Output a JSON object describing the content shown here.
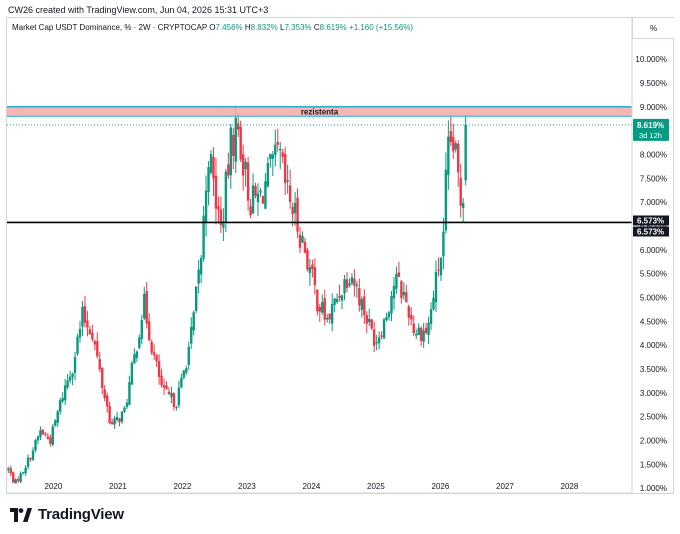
{
  "header": {
    "created_by": "CW26 created with TradingView.com, Jun 04, 2026 15:31 UTC+3"
  },
  "legend": {
    "title": "Market Cap USDT Dominance, % · 2W · CRYPTOCAP",
    "o_label": "O",
    "o_value": "7.456%",
    "h_label": "H",
    "h_value": "8.832%",
    "l_label": "L",
    "l_value": "7.353%",
    "c_label": "C",
    "c_value": "8.619%",
    "change": "+1.160 (+15.56%)"
  },
  "scale_button": "%",
  "brand": "TradingView",
  "colors": {
    "up": "#089981",
    "down": "#f23645",
    "zone_fill": "#f7a8a8",
    "zone_border": "#22b0d3",
    "hline": "#000000"
  },
  "chart_data": {
    "type": "candlestick",
    "title": "Market Cap USDT Dominance, % · 2W · CRYPTOCAP",
    "x_tick_labels": [
      "2020",
      "2021",
      "2022",
      "2023",
      "2024",
      "2025",
      "2026",
      "2027",
      "2028"
    ],
    "y_tick_labels": [
      "1.000%",
      "1.500%",
      "2.000%",
      "2.500%",
      "3.000%",
      "3.500%",
      "4.000%",
      "4.500%",
      "5.000%",
      "5.500%",
      "6.000%",
      "6.500%",
      "7.000%",
      "7.500%",
      "8.000%",
      "8.500%",
      "9.000%",
      "9.500%",
      "10.000%"
    ],
    "ylim": [
      0.9,
      10.4
    ],
    "xlim": [
      2019.28,
      2028.97
    ],
    "zone": {
      "label": "rezistenta",
      "low": 8.8,
      "high": 9.0
    },
    "horizontal_line": {
      "value": 6.573,
      "label": "6.573%"
    },
    "last_price": {
      "value": 8.619,
      "label": "8.619%",
      "countdown": "3d 12h"
    },
    "series_anchors": [
      [
        2019.3,
        1.4
      ],
      [
        2019.4,
        1.1
      ],
      [
        2019.5,
        1.3
      ],
      [
        2019.65,
        1.7
      ],
      [
        2019.8,
        2.2
      ],
      [
        2019.95,
        2.0
      ],
      [
        2020.15,
        3.0
      ],
      [
        2020.3,
        3.6
      ],
      [
        2020.45,
        4.6
      ],
      [
        2020.6,
        4.3
      ],
      [
        2020.75,
        3.2
      ],
      [
        2020.9,
        2.3
      ],
      [
        2021.1,
        2.6
      ],
      [
        2021.25,
        3.7
      ],
      [
        2021.4,
        4.9
      ],
      [
        2021.55,
        3.8
      ],
      [
        2021.7,
        3.0
      ],
      [
        2021.9,
        2.8
      ],
      [
        2022.0,
        3.3
      ],
      [
        2022.15,
        4.3
      ],
      [
        2022.3,
        6.0
      ],
      [
        2022.4,
        8.1
      ],
      [
        2022.5,
        7.2
      ],
      [
        2022.6,
        6.4
      ],
      [
        2022.75,
        8.2
      ],
      [
        2022.85,
        8.6
      ],
      [
        2022.95,
        7.8
      ],
      [
        2023.05,
        7.0
      ],
      [
        2023.2,
        7.1
      ],
      [
        2023.35,
        7.6
      ],
      [
        2023.5,
        8.0
      ],
      [
        2023.6,
        7.3
      ],
      [
        2023.75,
        6.7
      ],
      [
        2023.9,
        6.0
      ],
      [
        2024.1,
        4.9
      ],
      [
        2024.25,
        4.5
      ],
      [
        2024.4,
        5.0
      ],
      [
        2024.6,
        5.6
      ],
      [
        2024.75,
        5.0
      ],
      [
        2024.9,
        4.4
      ],
      [
        2025.0,
        4.1
      ],
      [
        2025.15,
        4.6
      ],
      [
        2025.3,
        5.4
      ],
      [
        2025.45,
        5.0
      ],
      [
        2025.6,
        4.3
      ],
      [
        2025.8,
        4.3
      ],
      [
        2025.95,
        5.5
      ],
      [
        2026.05,
        6.2
      ],
      [
        2026.1,
        7.9
      ],
      [
        2026.18,
        8.3
      ],
      [
        2026.25,
        7.8
      ],
      [
        2026.32,
        7.0
      ],
      [
        2026.38,
        7.5
      ],
      [
        2026.42,
        8.619
      ]
    ],
    "x_end": 2026.42,
    "candle_interval_years": 0.03833,
    "grid": false
  }
}
